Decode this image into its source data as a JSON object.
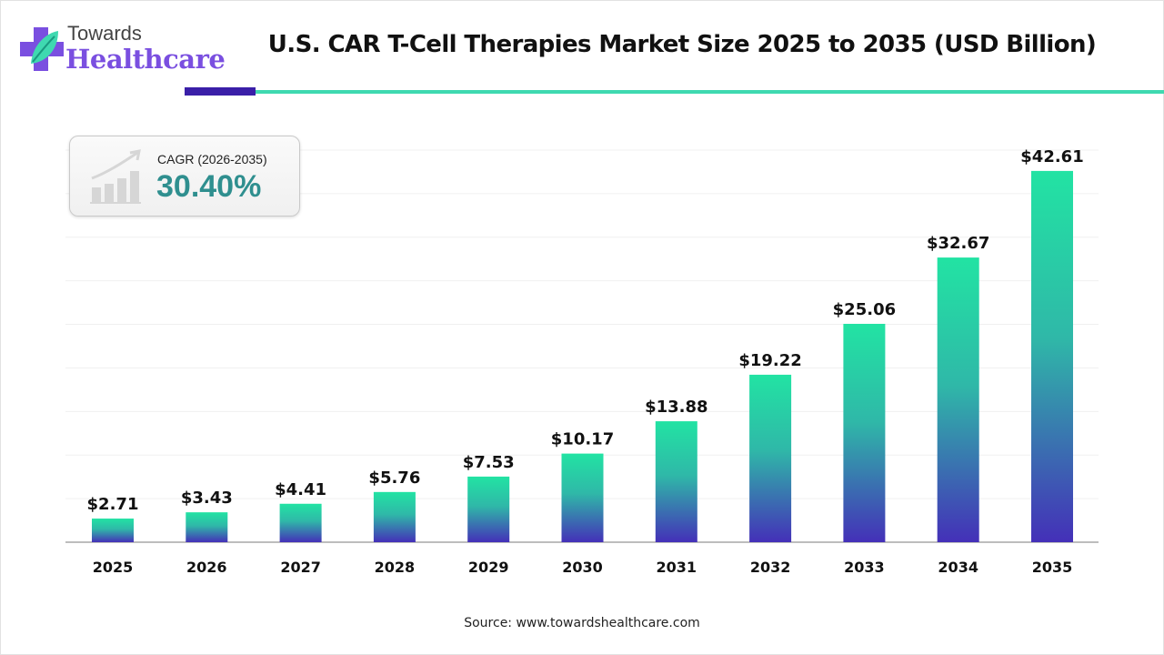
{
  "logo": {
    "line1": "Towards",
    "line2": "Healthcare",
    "brand_color": "#7a4fe0",
    "leaf_color": "#3fd9b0"
  },
  "header": {
    "title": "U.S. CAR T-Cell Therapies Market Size 2025 to 2035 (USD Billion)"
  },
  "cagr": {
    "label": "CAGR (2026-2035)",
    "value": "30.40%",
    "icon": "growth-chart-icon"
  },
  "footer": {
    "source": "Source: www.towardshealthcare.com"
  },
  "colors": {
    "bar_top": "#22e3a3",
    "bar_bottom": "#4430b8",
    "accent_dark": "#3a1fa8",
    "accent_teal": "#3fd9b0"
  },
  "chart_data": {
    "type": "bar",
    "title": "U.S. CAR T-Cell Therapies Market Size 2025 to 2035 (USD Billion)",
    "categories": [
      "2025",
      "2026",
      "2027",
      "2028",
      "2029",
      "2030",
      "2031",
      "2032",
      "2033",
      "2034",
      "2035"
    ],
    "values": [
      2.71,
      3.43,
      4.41,
      5.76,
      7.53,
      10.17,
      13.88,
      19.22,
      25.06,
      32.67,
      42.61
    ],
    "data_labels": [
      "$2.71",
      "$3.43",
      "$4.41",
      "$5.76",
      "$7.53",
      "$10.17",
      "$13.88",
      "$19.22",
      "$25.06",
      "$32.67",
      "$42.61"
    ],
    "xlabel": "",
    "ylabel": "",
    "ylim": [
      0,
      45
    ],
    "grid": true,
    "grid_step": 5
  }
}
